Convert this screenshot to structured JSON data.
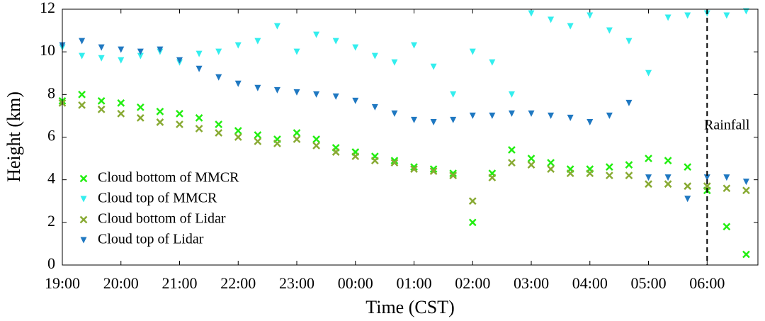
{
  "chart_data": {
    "type": "scatter",
    "x_label": "Time (CST)",
    "y_label": "Height (km)",
    "xlim": [
      "19:00",
      "06:52"
    ],
    "ylim": [
      0,
      12
    ],
    "xticks": [
      "19:00",
      "20:00",
      "21:00",
      "22:00",
      "23:00",
      "00:00",
      "01:00",
      "02:00",
      "03:00",
      "04:00",
      "05:00",
      "06:00"
    ],
    "yticks": [
      0,
      2,
      4,
      6,
      8,
      10,
      12
    ],
    "legend": "lower left",
    "annotation": {
      "text": "Rainfall",
      "x": "06:00"
    },
    "x": [
      "19:00",
      "19:20",
      "19:40",
      "20:00",
      "20:20",
      "20:40",
      "21:00",
      "21:20",
      "21:40",
      "22:00",
      "22:20",
      "22:40",
      "23:00",
      "23:20",
      "23:40",
      "00:00",
      "00:20",
      "00:40",
      "01:00",
      "01:20",
      "01:40",
      "02:00",
      "02:20",
      "02:40",
      "03:00",
      "03:20",
      "03:40",
      "04:00",
      "04:20",
      "04:40",
      "05:00",
      "05:20",
      "05:40",
      "06:00",
      "06:20",
      "06:40"
    ],
    "series": [
      {
        "name": "Cloud bottom of MMCR",
        "color": "#22ee11",
        "marker": "x",
        "values": [
          7.7,
          8.0,
          7.7,
          7.6,
          7.4,
          7.2,
          7.1,
          6.9,
          6.6,
          6.3,
          6.1,
          5.9,
          6.2,
          5.9,
          5.5,
          5.3,
          5.1,
          4.9,
          4.6,
          4.5,
          4.3,
          2.0,
          4.3,
          5.4,
          5.0,
          4.8,
          4.5,
          4.5,
          4.6,
          4.7,
          5.0,
          4.9,
          4.6,
          3.5,
          1.8,
          0.5
        ]
      },
      {
        "name": "Cloud top of MMCR",
        "color": "#33eeee",
        "marker": "triangle",
        "values": [
          10.2,
          9.8,
          9.7,
          9.6,
          9.8,
          10.0,
          9.5,
          9.9,
          10.0,
          10.3,
          10.5,
          11.2,
          10.0,
          10.8,
          10.5,
          10.2,
          9.8,
          9.5,
          10.3,
          9.3,
          8.0,
          10.0,
          9.5,
          8.0,
          11.8,
          11.5,
          11.2,
          11.7,
          11.0,
          10.5,
          9.0,
          11.6,
          11.7,
          11.8,
          11.7,
          11.9
        ]
      },
      {
        "name": "Cloud bottom of Lidar",
        "color": "#88aa33",
        "marker": "x",
        "values": [
          7.6,
          7.5,
          7.3,
          7.1,
          6.9,
          6.7,
          6.6,
          6.4,
          6.2,
          6.0,
          5.8,
          5.7,
          5.9,
          5.6,
          5.3,
          5.1,
          4.9,
          4.8,
          4.5,
          4.4,
          4.2,
          3.0,
          4.1,
          4.8,
          4.7,
          4.5,
          4.3,
          4.3,
          4.2,
          4.2,
          3.8,
          3.8,
          3.7,
          3.7,
          3.6,
          3.5
        ]
      },
      {
        "name": "Cloud top of Lidar",
        "color": "#1f78c1",
        "marker": "triangle",
        "values": [
          10.3,
          10.5,
          10.2,
          10.1,
          10.0,
          10.1,
          9.6,
          9.2,
          8.8,
          8.5,
          8.3,
          8.2,
          8.1,
          8.0,
          7.9,
          7.7,
          7.4,
          7.1,
          6.8,
          6.7,
          6.8,
          7.0,
          7.0,
          7.1,
          7.1,
          7.0,
          6.9,
          6.7,
          7.0,
          7.6,
          4.1,
          4.1,
          3.1,
          4.1,
          4.1,
          3.9
        ]
      }
    ]
  }
}
